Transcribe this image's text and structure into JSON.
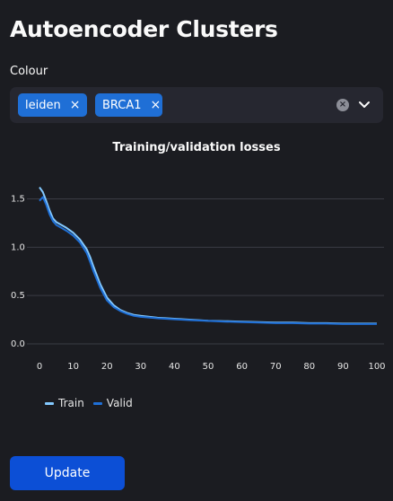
{
  "page": {
    "title": "Autoencoder Clusters"
  },
  "colour_select": {
    "label": "Colour",
    "selected": [
      "leiden",
      "BRCA1"
    ],
    "remove_glyph": "×"
  },
  "chart_data": {
    "type": "line",
    "title": "Training/validation losses",
    "xlabel": "",
    "ylabel": "",
    "x": [
      0,
      1,
      2,
      3,
      4,
      5,
      6,
      8,
      10,
      12,
      14,
      15,
      16,
      18,
      20,
      22,
      24,
      26,
      28,
      30,
      35,
      40,
      45,
      50,
      55,
      60,
      65,
      70,
      75,
      80,
      85,
      90,
      95,
      100
    ],
    "series": [
      {
        "name": "Train",
        "color": "#83c9ff",
        "values": [
          1.62,
          1.57,
          1.48,
          1.38,
          1.3,
          1.26,
          1.24,
          1.2,
          1.15,
          1.08,
          0.98,
          0.9,
          0.8,
          0.62,
          0.48,
          0.4,
          0.35,
          0.32,
          0.3,
          0.29,
          0.27,
          0.26,
          0.25,
          0.24,
          0.235,
          0.23,
          0.225,
          0.22,
          0.22,
          0.215,
          0.215,
          0.21,
          0.21,
          0.21
        ]
      },
      {
        "name": "Valid",
        "color": "#1f6fd6",
        "values": [
          1.48,
          1.52,
          1.44,
          1.34,
          1.27,
          1.23,
          1.21,
          1.17,
          1.12,
          1.05,
          0.94,
          0.85,
          0.75,
          0.58,
          0.45,
          0.38,
          0.34,
          0.31,
          0.29,
          0.28,
          0.265,
          0.255,
          0.245,
          0.238,
          0.23,
          0.225,
          0.22,
          0.215,
          0.215,
          0.21,
          0.21,
          0.205,
          0.205,
          0.205
        ]
      }
    ],
    "xticks": [
      "0",
      "10",
      "20",
      "30",
      "40",
      "50",
      "60",
      "70",
      "80",
      "90",
      "100"
    ],
    "yticks": [
      "0.0",
      "0.5",
      "1.0",
      "1.5"
    ],
    "xlim": [
      0,
      100
    ],
    "ylim": [
      0,
      1.7
    ],
    "grid": true,
    "legend_position": "bottom-left"
  },
  "actions": {
    "update_label": "Update"
  },
  "colors": {
    "accent": "#1f6fd6",
    "button": "#0c4fd6",
    "background": "#1b1c21"
  },
  "icons": {
    "clear": "clear-all-icon",
    "dropdown": "chevron-down-icon"
  }
}
